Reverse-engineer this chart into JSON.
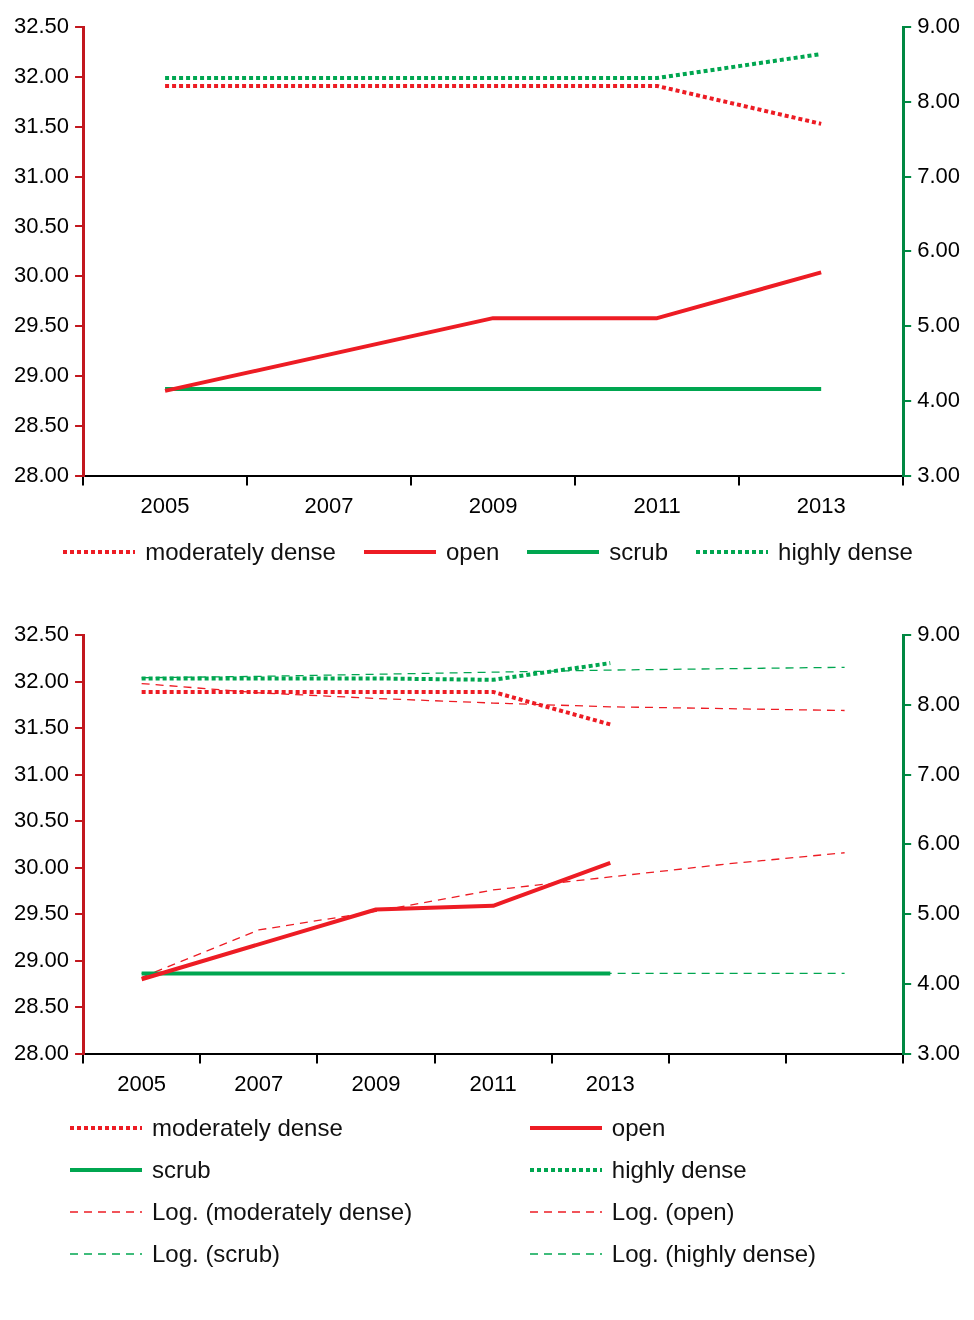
{
  "chart_data": [
    {
      "type": "line",
      "categories": [
        "2005",
        "2007",
        "2009",
        "2011",
        "2013"
      ],
      "ylim": [
        28,
        32.5
      ],
      "yticks": [
        {
          "value": 28,
          "label": "28.00"
        },
        {
          "value": 28.5,
          "label": "28.50"
        },
        {
          "value": 29,
          "label": "29.00"
        },
        {
          "value": 29.5,
          "label": "29.50"
        },
        {
          "value": 30,
          "label": "30.00"
        },
        {
          "value": 30.5,
          "label": "30.50"
        },
        {
          "value": 31,
          "label": "31.00"
        },
        {
          "value": 31.5,
          "label": "31.50"
        },
        {
          "value": 32,
          "label": "32.00"
        },
        {
          "value": 32.5,
          "label": "32.50"
        }
      ],
      "y2lim": [
        3,
        9
      ],
      "y2ticks": [
        {
          "value": 3,
          "label": "3.00"
        },
        {
          "value": 4,
          "label": "4.00"
        },
        {
          "value": 5,
          "label": "5.00"
        },
        {
          "value": 6,
          "label": "6.00"
        },
        {
          "value": 7,
          "label": "7.00"
        },
        {
          "value": 8,
          "label": "8.00"
        },
        {
          "value": 9,
          "label": "9.00"
        }
      ],
      "grid": false,
      "legend": "bottom",
      "marker": "none",
      "series": [
        {
          "name": "moderately dense",
          "color": "#ed1c24",
          "line_style": "dotted",
          "values": [
            31.91,
            null,
            31.91,
            31.91,
            31.53
          ]
        },
        {
          "name": "open",
          "color": "#ed1c24",
          "line_style": "solid",
          "values": [
            28.85,
            null,
            29.58,
            29.58,
            30.04
          ]
        },
        {
          "name": "scrub",
          "color": "#00a650",
          "line_style": "solid",
          "axis": "y2",
          "values": [
            4.16,
            null,
            4.16,
            4.16,
            4.16
          ]
        },
        {
          "name": "highly dense",
          "color": "#00a650",
          "line_style": "dotted",
          "axis": "y2",
          "values": [
            8.32,
            null,
            8.32,
            8.32,
            8.64
          ]
        }
      ]
    },
    {
      "type": "line",
      "categories": [
        "2005",
        "2007",
        "2009",
        "2011",
        "2013",
        null,
        null
      ],
      "ylim": [
        28,
        32.5
      ],
      "yticks": [
        {
          "value": 28,
          "label": "28.00"
        },
        {
          "value": 28.5,
          "label": "28.50"
        },
        {
          "value": 29,
          "label": "29.00"
        },
        {
          "value": 29.5,
          "label": "29.50"
        },
        {
          "value": 30,
          "label": "30.00"
        },
        {
          "value": 30.5,
          "label": "30.50"
        },
        {
          "value": 31,
          "label": "31.00"
        },
        {
          "value": 31.5,
          "label": "31.50"
        },
        {
          "value": 32,
          "label": "32.00"
        },
        {
          "value": 32.5,
          "label": "32.50"
        }
      ],
      "y2lim": [
        3,
        9
      ],
      "y2ticks": [
        {
          "value": 3,
          "label": "3.00"
        },
        {
          "value": 4,
          "label": "4.00"
        },
        {
          "value": 5,
          "label": "5.00"
        },
        {
          "value": 6,
          "label": "6.00"
        },
        {
          "value": 7,
          "label": "7.00"
        },
        {
          "value": 8,
          "label": "8.00"
        },
        {
          "value": 9,
          "label": "9.00"
        }
      ],
      "grid": false,
      "legend": "bottom",
      "marker": "none",
      "series": [
        {
          "name": "moderately dense",
          "color": "#ed1c24",
          "line_style": "dotted",
          "values": [
            31.89,
            null,
            31.89,
            31.89,
            31.54,
            null,
            null
          ]
        },
        {
          "name": "open",
          "color": "#ed1c24",
          "line_style": "solid",
          "values": [
            28.8,
            null,
            29.55,
            29.59,
            30.05,
            null,
            null
          ]
        },
        {
          "name": "scrub",
          "color": "#00a650",
          "line_style": "solid",
          "axis": "y2",
          "values": [
            4.15,
            null,
            4.15,
            4.15,
            4.15,
            null,
            null
          ]
        },
        {
          "name": "highly dense",
          "color": "#00a650",
          "line_style": "dotted",
          "axis": "y2",
          "values": [
            8.38,
            null,
            8.38,
            8.36,
            8.6,
            null,
            null
          ]
        },
        {
          "name": "Log. (moderately dense)",
          "type": "line",
          "color": "#ed1c24",
          "line_style": "dashed",
          "values": [
            31.98,
            31.88,
            31.82,
            31.77,
            31.73,
            31.71,
            31.69
          ]
        },
        {
          "name": "Log. (open)",
          "type": "line",
          "color": "#ed1c24",
          "line_style": "dashed",
          "values": [
            28.82,
            29.33,
            29.53,
            29.76,
            29.9,
            30.04,
            30.16
          ]
        },
        {
          "name": "Log. (scrub)",
          "type": "line",
          "color": "#00a650",
          "line_style": "dashed",
          "axis": "y2",
          "values": [
            4.15,
            4.15,
            4.15,
            4.15,
            4.15,
            4.15,
            4.15
          ]
        },
        {
          "name": "Log. (highly dense)",
          "type": "line",
          "color": "#00a650",
          "line_style": "dashed",
          "axis": "y2",
          "values": [
            8.39,
            8.41,
            8.44,
            8.47,
            8.5,
            8.52,
            8.54
          ]
        }
      ]
    }
  ]
}
